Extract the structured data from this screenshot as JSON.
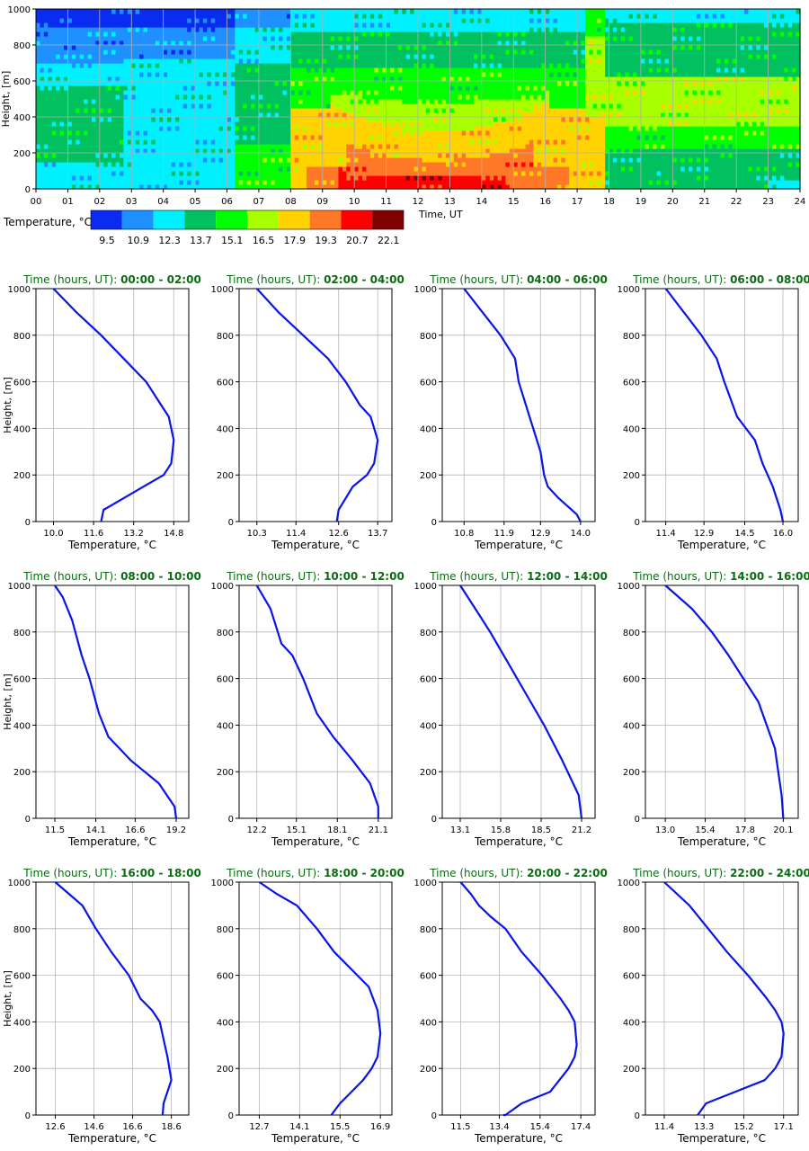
{
  "heatmap": {
    "ylabel": "Height, [m]",
    "xlabel": "Time, UT",
    "y_ticks": [
      "0",
      "200",
      "400",
      "600",
      "800",
      "1000"
    ],
    "x_ticks": [
      "00",
      "01",
      "02",
      "03",
      "04",
      "05",
      "06",
      "07",
      "08",
      "09",
      "10",
      "11",
      "12",
      "13",
      "14",
      "15",
      "16",
      "17",
      "18",
      "19",
      "20",
      "21",
      "22",
      "23",
      "24"
    ],
    "colorbar_label": "Temperature, °C",
    "colorbar_values": [
      "9.5",
      "10.9",
      "12.3",
      "13.7",
      "15.1",
      "16.5",
      "17.9",
      "19.3",
      "20.7",
      "22.1"
    ],
    "colors": [
      "#0a2cf0",
      "#1e90ff",
      "#00f0ff",
      "#00c060",
      "#00ff00",
      "#a8ff00",
      "#ffd200",
      "#ff7828",
      "#ff0000",
      "#800000"
    ]
  },
  "profile_labels": {
    "ylabel": "Height, [m]",
    "xlabel": "Temperature, °C",
    "title_prefix": "Time (hours, UT):",
    "y_ticks": [
      "0",
      "200",
      "400",
      "600",
      "800",
      "1000"
    ]
  },
  "chart_data": [
    {
      "type": "heatmap",
      "xlabel": "Time, UT",
      "ylabel": "Height, [m]",
      "xlim": [
        0,
        24
      ],
      "ylim": [
        0,
        1000
      ],
      "colorbar": {
        "label": "Temperature, °C",
        "levels": [
          9.5,
          10.9,
          12.3,
          13.7,
          15.1,
          16.5,
          17.9,
          19.3,
          20.7,
          22.1
        ]
      },
      "grid": true
    },
    {
      "type": "line",
      "title_time": "00:00 - 02:00",
      "xticks": [
        "10.0",
        "11.6",
        "13.2",
        "14.8"
      ],
      "xlim": [
        9.3,
        15.4
      ],
      "ylim": [
        0,
        1000
      ],
      "x": [
        10.0,
        10.9,
        11.9,
        12.8,
        13.7,
        14.3,
        14.6,
        14.8,
        14.7,
        14.4,
        13.6,
        12.8,
        12.0,
        11.9
      ],
      "y": [
        1000,
        900,
        800,
        700,
        600,
        500,
        450,
        350,
        250,
        200,
        150,
        100,
        50,
        0
      ],
      "xlabel": "Temperature, °C",
      "ylabel": "Height, [m]"
    },
    {
      "type": "line",
      "title_time": "02:00 - 04:00",
      "xticks": [
        "10.3",
        "11.4",
        "12.6",
        "13.7"
      ],
      "xlim": [
        9.8,
        14.1
      ],
      "ylim": [
        0,
        1000
      ],
      "x": [
        10.3,
        10.9,
        11.6,
        12.3,
        12.8,
        13.2,
        13.5,
        13.7,
        13.6,
        13.4,
        13.0,
        12.6,
        12.55
      ],
      "y": [
        1000,
        900,
        800,
        700,
        600,
        500,
        450,
        350,
        250,
        200,
        150,
        50,
        0
      ],
      "xlabel": "Temperature, °C",
      "ylabel": "Height, [m]"
    },
    {
      "type": "line",
      "title_time": "04:00 - 06:00",
      "xticks": [
        "10.8",
        "11.9",
        "12.9",
        "14.0"
      ],
      "xlim": [
        10.2,
        14.4
      ],
      "ylim": [
        0,
        1000
      ],
      "x": [
        10.8,
        11.3,
        11.8,
        12.2,
        12.3,
        12.6,
        12.7,
        12.9,
        13.0,
        13.1,
        13.4,
        13.9,
        14.0
      ],
      "y": [
        1000,
        900,
        800,
        700,
        600,
        450,
        400,
        300,
        200,
        150,
        100,
        30,
        0
      ],
      "xlabel": "Temperature, °C",
      "ylabel": "Height, [m]"
    },
    {
      "type": "line",
      "title_time": "06:00 - 08:00",
      "xticks": [
        "11.4",
        "12.9",
        "14.5",
        "16.0"
      ],
      "xlim": [
        10.6,
        16.6
      ],
      "ylim": [
        0,
        1000
      ],
      "x": [
        11.4,
        12.1,
        12.8,
        13.4,
        13.7,
        14.2,
        14.9,
        15.2,
        15.6,
        15.9,
        16.0
      ],
      "y": [
        1000,
        900,
        800,
        700,
        600,
        450,
        350,
        250,
        150,
        50,
        0
      ],
      "xlabel": "Temperature, °C",
      "ylabel": "Height, [m]"
    },
    {
      "type": "line",
      "title_time": "08:00 - 10:00",
      "xticks": [
        "11.5",
        "14.1",
        "16.6",
        "19.2"
      ],
      "xlim": [
        10.3,
        20.0
      ],
      "ylim": [
        0,
        1000
      ],
      "x": [
        11.5,
        12.0,
        12.6,
        13.2,
        13.7,
        14.3,
        14.9,
        15.6,
        16.3,
        17.2,
        18.1,
        19.1,
        19.2
      ],
      "y": [
        1000,
        950,
        850,
        700,
        600,
        450,
        350,
        300,
        250,
        200,
        150,
        50,
        0
      ],
      "xlabel": "Temperature, °C",
      "ylabel": "Height, [m]"
    },
    {
      "type": "line",
      "title_time": "10:00 - 12:00",
      "xticks": [
        "12.2",
        "15.1",
        "18.1",
        "21.1"
      ],
      "xlim": [
        10.9,
        22.1
      ],
      "ylim": [
        0,
        1000
      ],
      "x": [
        12.2,
        13.2,
        14.0,
        14.8,
        15.6,
        16.6,
        17.8,
        19.2,
        20.5,
        21.1,
        21.1
      ],
      "y": [
        1000,
        900,
        750,
        700,
        600,
        450,
        350,
        250,
        150,
        50,
        0
      ],
      "xlabel": "Temperature, °C",
      "ylabel": "Height, [m]"
    },
    {
      "type": "line",
      "title_time": "12:00 - 14:00",
      "xticks": [
        "13.1",
        "15.8",
        "18.5",
        "21.2"
      ],
      "xlim": [
        11.9,
        22.1
      ],
      "ylim": [
        0,
        1000
      ],
      "x": [
        13.1,
        14.1,
        15.1,
        16.0,
        16.9,
        17.8,
        18.7,
        19.9,
        21.0,
        21.2
      ],
      "y": [
        1000,
        900,
        800,
        700,
        600,
        500,
        400,
        250,
        100,
        0
      ],
      "xlabel": "Temperature, °C",
      "ylabel": "Height, [m]"
    },
    {
      "type": "line",
      "title_time": "14:00 - 16:00",
      "xticks": [
        "13.0",
        "15.4",
        "17.8",
        "20.1"
      ],
      "xlim": [
        11.8,
        21.0
      ],
      "ylim": [
        0,
        1000
      ],
      "x": [
        13.0,
        14.6,
        15.8,
        16.8,
        17.7,
        18.6,
        19.6,
        20.0,
        20.1
      ],
      "y": [
        1000,
        900,
        800,
        700,
        600,
        500,
        300,
        100,
        0
      ],
      "xlabel": "Temperature, °C",
      "ylabel": "Height, [m]"
    },
    {
      "type": "line",
      "title_time": "16:00 - 18:00",
      "xticks": [
        "12.6",
        "14.6",
        "16.6",
        "18.6"
      ],
      "xlim": [
        11.6,
        19.5
      ],
      "ylim": [
        0,
        1000
      ],
      "x": [
        12.6,
        13.3,
        14.0,
        14.7,
        15.5,
        16.4,
        17.0,
        17.6,
        18.0,
        18.4,
        18.6,
        18.2,
        18.15
      ],
      "y": [
        1000,
        950,
        900,
        800,
        700,
        600,
        500,
        450,
        400,
        250,
        150,
        50,
        0
      ],
      "xlabel": "Temperature, °C",
      "ylabel": "Height, [m]"
    },
    {
      "type": "line",
      "title_time": "18:00 - 20:00",
      "xticks": [
        "12.7",
        "14.1",
        "15.5",
        "16.9"
      ],
      "xlim": [
        12.0,
        17.3
      ],
      "ylim": [
        0,
        1000
      ],
      "x": [
        12.7,
        13.3,
        14.0,
        14.7,
        15.3,
        16.1,
        16.5,
        16.8,
        16.9,
        16.8,
        16.6,
        16.3,
        15.9,
        15.5,
        15.2
      ],
      "y": [
        1000,
        950,
        900,
        800,
        700,
        600,
        550,
        450,
        350,
        250,
        200,
        150,
        100,
        50,
        0
      ],
      "xlabel": "Temperature, °C",
      "ylabel": "Height, [m]"
    },
    {
      "type": "line",
      "title_time": "20:00 - 22:00",
      "xticks": [
        "11.5",
        "13.4",
        "15.4",
        "17.4"
      ],
      "xlim": [
        10.6,
        18.1
      ],
      "ylim": [
        0,
        1000
      ],
      "x": [
        11.5,
        12.0,
        12.4,
        13.0,
        13.7,
        14.5,
        15.5,
        16.4,
        16.8,
        17.1,
        17.2,
        17.1,
        16.8,
        15.9,
        14.5,
        13.7,
        13.6
      ],
      "y": [
        1000,
        950,
        900,
        850,
        800,
        700,
        600,
        500,
        450,
        400,
        300,
        250,
        200,
        100,
        50,
        0,
        0
      ],
      "xlabel": "Temperature, °C",
      "ylabel": "Height, [m]"
    },
    {
      "type": "line",
      "title_time": "22:00 - 24:00",
      "xticks": [
        "11.4",
        "13.3",
        "15.2",
        "17.1"
      ],
      "xlim": [
        10.5,
        17.8
      ],
      "ylim": [
        0,
        1000
      ],
      "x": [
        11.4,
        12.6,
        13.5,
        14.4,
        15.4,
        16.3,
        16.7,
        17.0,
        17.1,
        17.0,
        16.7,
        16.2,
        14.8,
        13.4,
        13.0
      ],
      "y": [
        1000,
        900,
        800,
        700,
        600,
        500,
        450,
        400,
        350,
        250,
        200,
        150,
        100,
        50,
        0
      ],
      "xlabel": "Temperature, °C",
      "ylabel": "Height, [m]"
    }
  ]
}
